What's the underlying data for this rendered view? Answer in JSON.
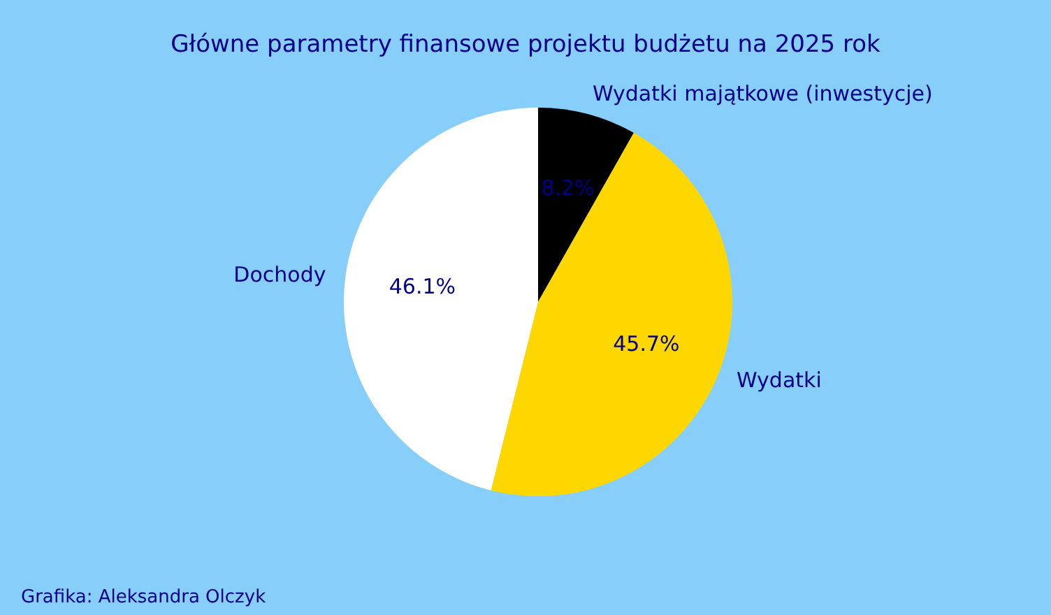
{
  "chart_data": {
    "type": "pie",
    "title": "Główne parametry finansowe projektu budżetu na 2025 rok",
    "categories": [
      "Wydatki majątkowe (inwestycje)",
      "Wydatki",
      "Dochody"
    ],
    "values": [
      8.2,
      45.7,
      46.1
    ],
    "colors": [
      "#000000",
      "#ffd700",
      "#ffffff"
    ],
    "value_labels": [
      "8.2%",
      "45.7%",
      "46.1%"
    ],
    "annotations": [
      "Grafika: Aleksandra Olczyk"
    ]
  }
}
